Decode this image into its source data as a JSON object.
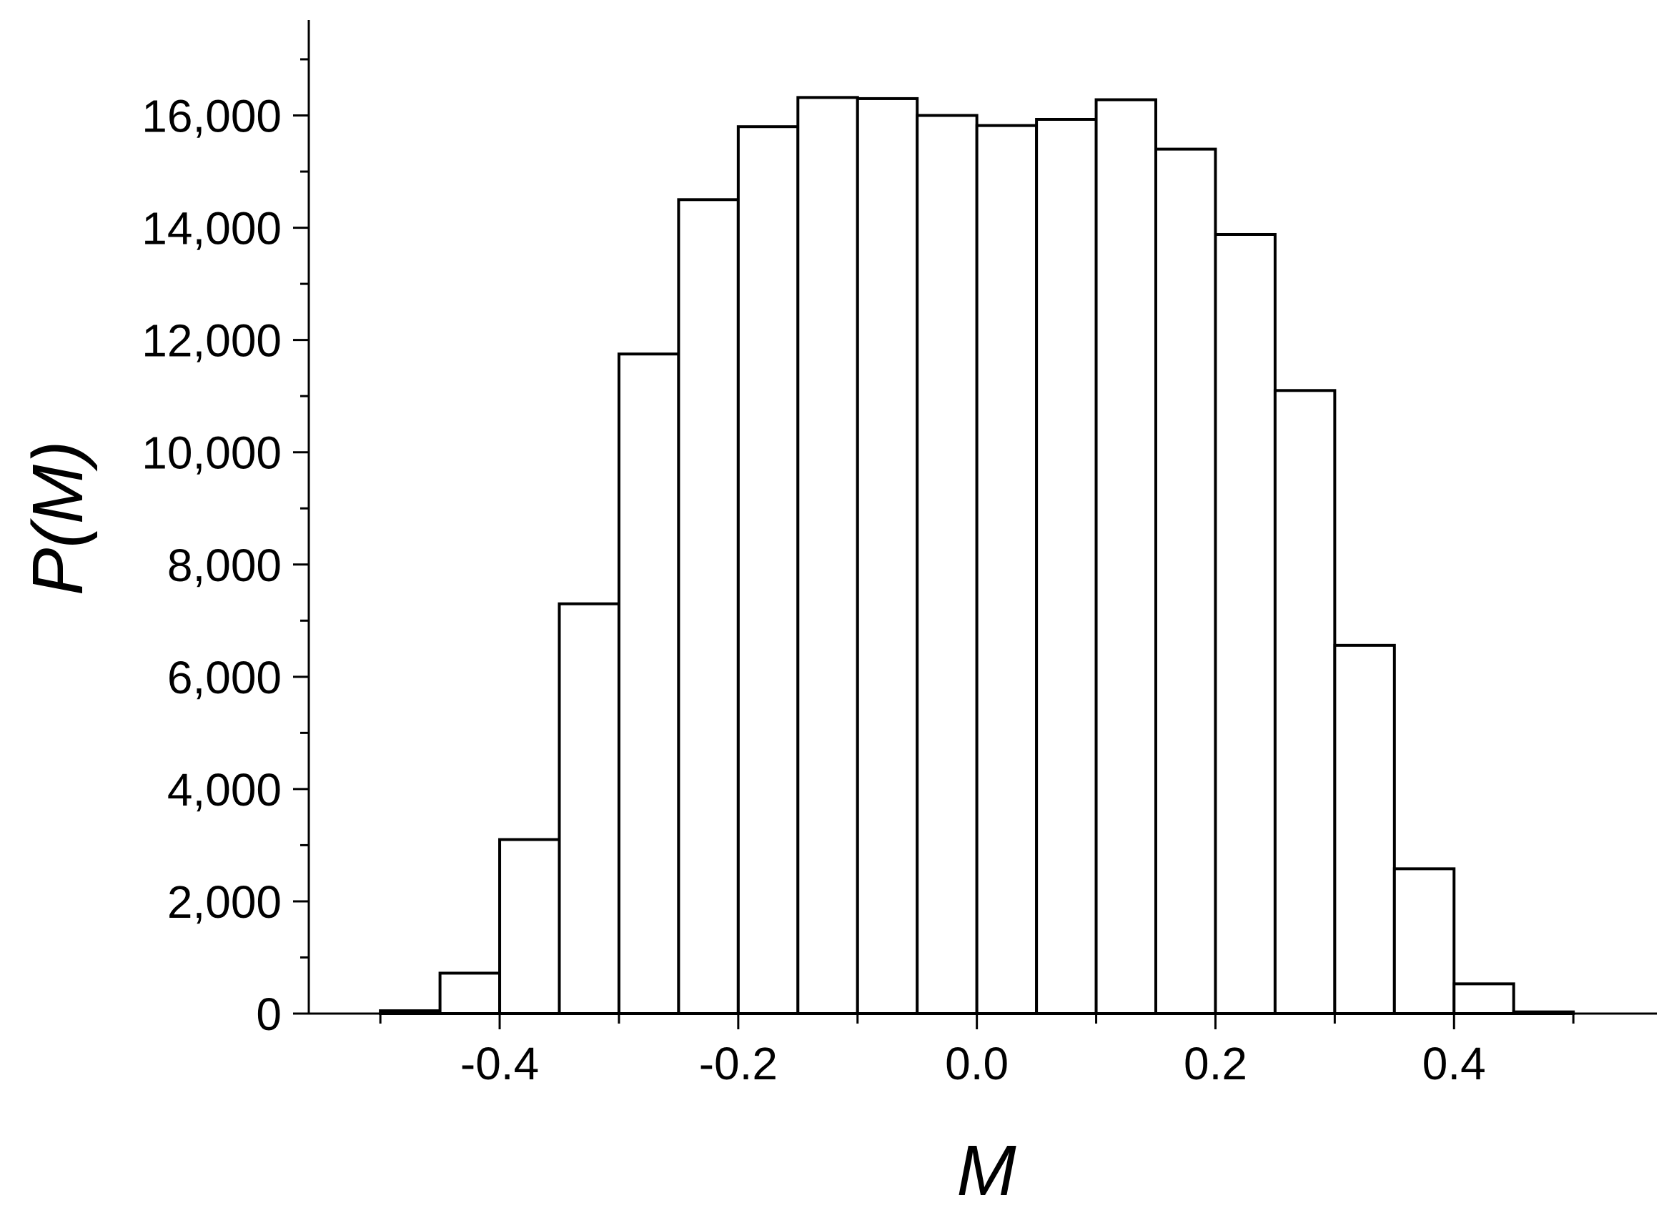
{
  "chart_data": {
    "type": "bar",
    "subtype": "histogram",
    "xlabel": "M",
    "ylabel": "P(M)",
    "bin_width": 0.05,
    "bin_starts": [
      -0.5,
      -0.45,
      -0.4,
      -0.35,
      -0.3,
      -0.25,
      -0.2,
      -0.15,
      -0.1,
      -0.05,
      0.0,
      0.05,
      0.1,
      0.15,
      0.2,
      0.25,
      0.3,
      0.35,
      0.4,
      0.45
    ],
    "values": [
      50,
      720,
      3100,
      7300,
      11750,
      14500,
      15800,
      16320,
      16300,
      16000,
      15820,
      15930,
      16280,
      15400,
      13880,
      11100,
      6560,
      2580,
      530,
      30
    ],
    "xlim": [
      -0.56,
      0.57
    ],
    "ylim": [
      0,
      17700
    ],
    "x_ticks": [
      -0.4,
      -0.2,
      0.0,
      0.2,
      0.4
    ],
    "x_tick_labels": [
      "-0.4",
      "-0.2",
      "0.0",
      "0.2",
      "0.4"
    ],
    "y_ticks": [
      0,
      2000,
      4000,
      6000,
      8000,
      10000,
      12000,
      14000,
      16000
    ],
    "y_tick_labels": [
      "0",
      "2,000",
      "4,000",
      "6,000",
      "8,000",
      "10,000",
      "12,000",
      "14,000",
      "16,000"
    ],
    "bar_fill": "#ffffff",
    "bar_stroke": "#000000",
    "grid": false,
    "legend": false
  }
}
